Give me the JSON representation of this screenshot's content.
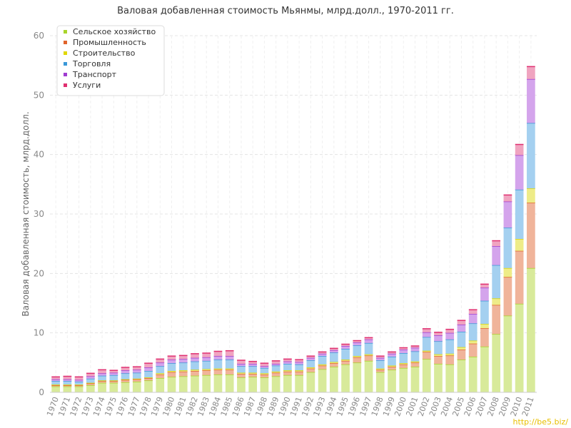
{
  "chart_data": {
    "type": "bar",
    "stacked": true,
    "title": "Валовая добавленная стоимость Мьянмы, млрд.долл., 1970-2011 гг.",
    "ylabel": "Валовая добавленная стоимость, млрд.долл.",
    "xlabel": "",
    "ylim": [
      0,
      60
    ],
    "yticks": [
      0,
      10,
      20,
      30,
      40,
      50,
      60
    ],
    "grid": true,
    "legend_position": "top-left",
    "categories": [
      "1970",
      "1971",
      "1972",
      "1973",
      "1974",
      "1975",
      "1976",
      "1977",
      "1978",
      "1979",
      "1980",
      "1981",
      "1982",
      "1983",
      "1984",
      "1985",
      "1986",
      "1987",
      "1988",
      "1989",
      "1990",
      "1991",
      "1992",
      "1993",
      "1994",
      "1995",
      "1996",
      "1997",
      "1998",
      "1999",
      "2000",
      "2001",
      "2002",
      "2003",
      "2004",
      "2005",
      "2006",
      "2007",
      "2008",
      "2009",
      "2010",
      "2011"
    ],
    "series": [
      {
        "name": "Сельское хозяйство",
        "color": "#a8d42a",
        "fill": "#d8ea9a",
        "values": [
          1.0,
          1.0,
          1.0,
          1.2,
          1.6,
          1.6,
          1.7,
          1.8,
          2.0,
          2.4,
          2.6,
          2.7,
          2.8,
          2.9,
          3.0,
          3.0,
          2.5,
          2.6,
          2.5,
          2.7,
          2.9,
          2.9,
          3.4,
          3.9,
          4.3,
          4.7,
          5.0,
          5.3,
          3.4,
          3.8,
          4.1,
          4.3,
          5.6,
          4.8,
          4.7,
          5.5,
          6.0,
          7.7,
          9.8,
          12.9,
          14.9,
          20.9
        ]
      },
      {
        "name": "Промышленность",
        "color": "#e0642c",
        "fill": "#f0b49a",
        "values": [
          0.2,
          0.2,
          0.2,
          0.3,
          0.3,
          0.3,
          0.4,
          0.4,
          0.4,
          0.6,
          0.8,
          0.8,
          0.8,
          0.8,
          0.8,
          0.8,
          0.6,
          0.5,
          0.5,
          0.6,
          0.6,
          0.6,
          0.6,
          0.6,
          0.6,
          0.6,
          0.9,
          0.9,
          0.4,
          0.5,
          0.6,
          0.7,
          1.2,
          1.3,
          1.5,
          1.7,
          2.2,
          3.1,
          4.9,
          6.5,
          8.9,
          11.0
        ]
      },
      {
        "name": "Строительство",
        "color": "#e0d800",
        "fill": "#eeec88",
        "values": [
          0.1,
          0.1,
          0.1,
          0.1,
          0.1,
          0.1,
          0.1,
          0.1,
          0.1,
          0.2,
          0.2,
          0.2,
          0.2,
          0.2,
          0.2,
          0.2,
          0.2,
          0.2,
          0.2,
          0.2,
          0.2,
          0.2,
          0.2,
          0.2,
          0.2,
          0.2,
          0.2,
          0.2,
          0.2,
          0.2,
          0.2,
          0.2,
          0.2,
          0.3,
          0.3,
          0.4,
          0.5,
          0.7,
          1.1,
          1.5,
          2.0,
          2.4
        ]
      },
      {
        "name": "Торговля",
        "color": "#3a98d8",
        "fill": "#a4d0f0",
        "values": [
          0.6,
          0.6,
          0.5,
          0.7,
          0.8,
          0.9,
          1.0,
          1.0,
          1.1,
          1.2,
          1.3,
          1.3,
          1.4,
          1.4,
          1.5,
          1.5,
          1.1,
          1.1,
          0.9,
          1.0,
          1.1,
          1.0,
          1.2,
          1.4,
          1.6,
          1.8,
          1.8,
          1.9,
          1.4,
          1.5,
          1.7,
          1.7,
          2.3,
          2.2,
          2.4,
          2.6,
          2.9,
          3.9,
          5.6,
          6.8,
          8.3,
          11.0
        ]
      },
      {
        "name": "Транспорт",
        "color": "#a03cd0",
        "fill": "#d4a4ec",
        "values": [
          0.3,
          0.3,
          0.3,
          0.4,
          0.4,
          0.4,
          0.5,
          0.5,
          0.6,
          0.6,
          0.6,
          0.6,
          0.6,
          0.6,
          0.6,
          0.6,
          0.4,
          0.4,
          0.3,
          0.3,
          0.4,
          0.4,
          0.4,
          0.4,
          0.4,
          0.5,
          0.5,
          0.6,
          0.4,
          0.5,
          0.6,
          0.6,
          0.8,
          1.0,
          1.1,
          1.2,
          1.6,
          2.2,
          3.2,
          4.4,
          5.8,
          7.4
        ]
      },
      {
        "name": "Услуги",
        "color": "#e03070",
        "fill": "#f0a4c0",
        "values": [
          0.4,
          0.5,
          0.5,
          0.5,
          0.6,
          0.4,
          0.5,
          0.5,
          0.7,
          0.6,
          0.6,
          0.6,
          0.7,
          0.7,
          0.8,
          0.9,
          0.6,
          0.4,
          0.5,
          0.5,
          0.4,
          0.4,
          0.3,
          0.3,
          0.3,
          0.3,
          0.3,
          0.3,
          0.3,
          0.3,
          0.3,
          0.3,
          0.6,
          0.5,
          0.6,
          0.7,
          0.7,
          0.6,
          0.9,
          1.1,
          1.8,
          2.1
        ]
      }
    ]
  },
  "watermark": "http://be5.biz/"
}
